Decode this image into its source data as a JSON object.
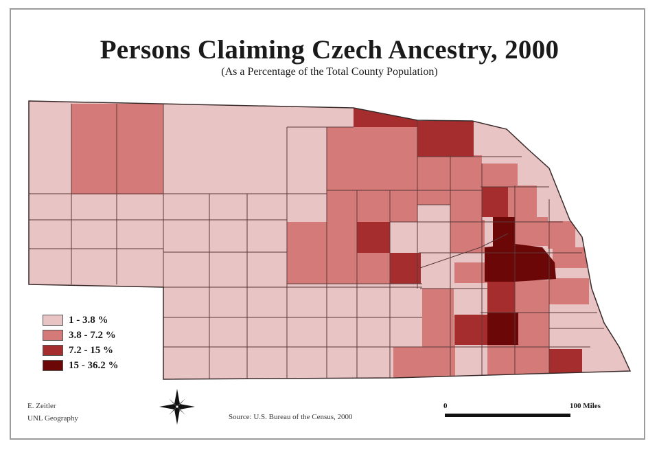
{
  "title": "Persons Claiming Czech Ancestry, 2000",
  "subtitle": "(As a Percentage of the Total County Population)",
  "legend": [
    {
      "label": "1 - 3.8 %",
      "color": "#e9c4c4"
    },
    {
      "label": "3.8 - 7.2 %",
      "color": "#d47a78"
    },
    {
      "label": "7.2 - 15 %",
      "color": "#a52d2d"
    },
    {
      "label": "15 - 36.2 %",
      "color": "#6b0707"
    }
  ],
  "credit": {
    "line1": "E. Zeitler",
    "line2": "UNL Geography"
  },
  "source": "Source: U.S. Bureau of the Census, 2000",
  "scale": {
    "start": "0",
    "end": "100  Miles"
  },
  "colors": {
    "border": "#5a3a3a",
    "frame": "#9c9c9c"
  },
  "icons": [
    "compass-rose-icon"
  ]
}
